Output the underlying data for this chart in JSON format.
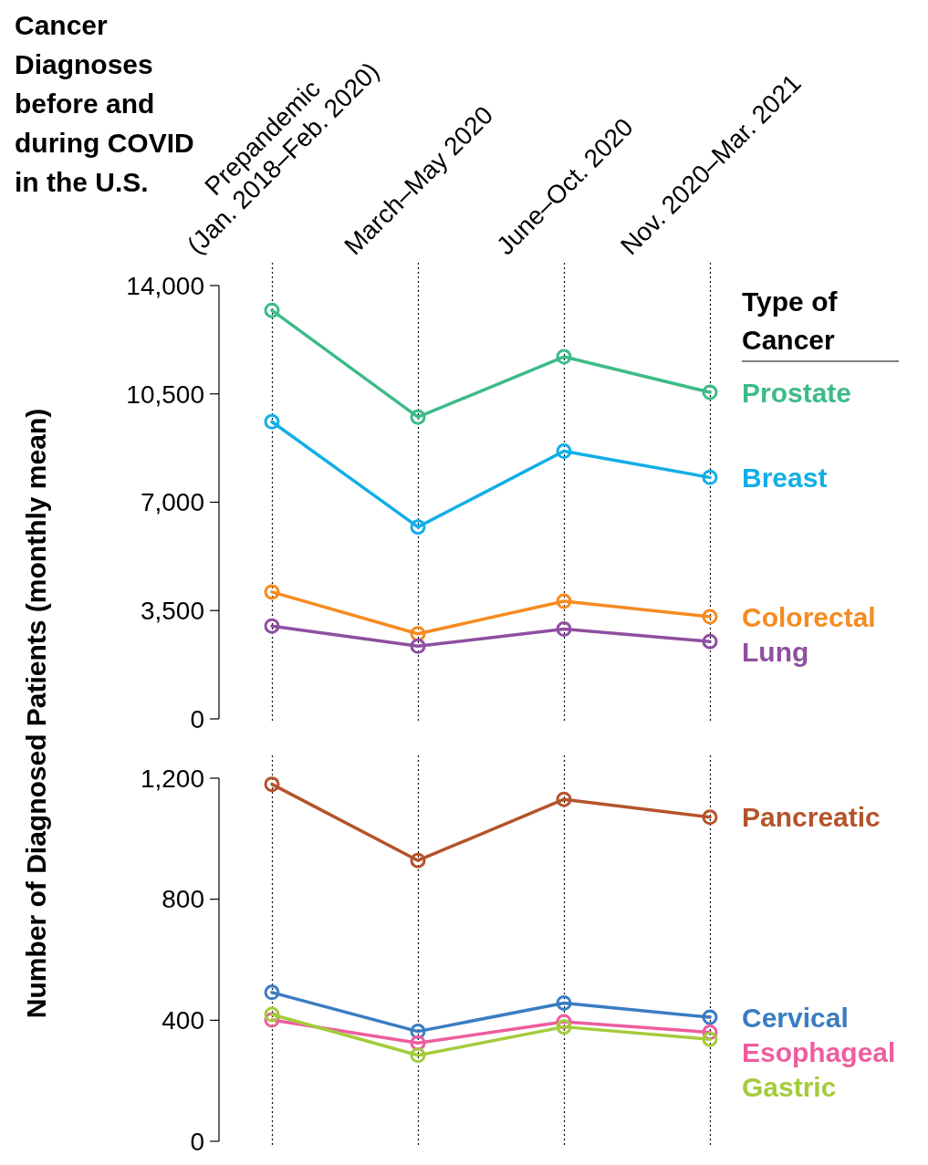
{
  "chart_data": [
    {
      "type": "line",
      "title": "Cancer Diagnoses before and during COVID in the U.S.",
      "ylabel": "Number of Diagnosed Patients (monthly mean)",
      "legend_title": "Type of Cancer",
      "legend": "right",
      "grid": "x",
      "marker": "circle",
      "line_style": "solid",
      "categories": [
        "Prepandemic\n(Jan. 2018–Feb. 2020)",
        "March–May 2020",
        "June–Oct. 2020",
        "Nov. 2020–Mar. 2021"
      ],
      "ylim": [
        0,
        14000
      ],
      "yticks": [
        0,
        {
          "value": 3500,
          "label": "3,500"
        },
        {
          "value": 7000,
          "label": "7,000"
        },
        {
          "value": 10500,
          "label": "10,500"
        },
        {
          "value": 14000,
          "label": "14,000"
        }
      ],
      "series": [
        {
          "name": "Prostate",
          "color": "#3dbb87",
          "values": [
            13200,
            9750,
            11700,
            10550
          ]
        },
        {
          "name": "Breast",
          "color": "#12aee8",
          "values": [
            9600,
            6200,
            8650,
            7800
          ]
        },
        {
          "name": "Colorectal",
          "color": "#f58b21",
          "values": [
            4100,
            2750,
            3800,
            3300
          ]
        },
        {
          "name": "Lung",
          "color": "#8e4fa0",
          "values": [
            3000,
            2350,
            2900,
            2500
          ]
        }
      ]
    },
    {
      "type": "line",
      "legend": "right",
      "grid": "x",
      "marker": "circle",
      "line_style": "solid",
      "categories": [
        null,
        null,
        null,
        null
      ],
      "ylim": [
        0,
        1200
      ],
      "yticks": [
        0,
        400,
        800,
        {
          "value": 1200,
          "label": "1,200"
        }
      ],
      "series": [
        {
          "name": "Pancreatic",
          "color": "#b5532b",
          "values": [
            1180,
            928,
            1130,
            1071
          ]
        },
        {
          "name": "Cervical",
          "color": "#3a7cc3",
          "values": [
            492,
            363,
            457,
            410
          ]
        },
        {
          "name": "Esophageal",
          "color": "#ee5d9f",
          "values": [
            401,
            325,
            395,
            360
          ]
        },
        {
          "name": "Gastric",
          "color": "#a3cc3b",
          "values": [
            419,
            284,
            378,
            337
          ]
        }
      ]
    }
  ]
}
